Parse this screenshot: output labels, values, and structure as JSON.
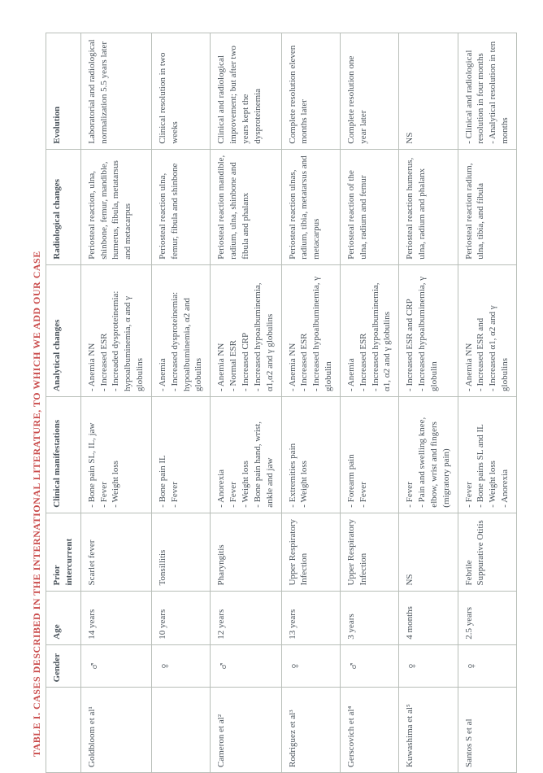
{
  "title": "TABLE I. CASES DESCRIBED IN THE INTERNATIONAL LITERATURE, TO WHICH WE ADD OUR CASE",
  "headers": {
    "c0": "",
    "c1": "Gender",
    "c2": "Age",
    "c3": "Prior intercurrent",
    "c4": "Clinical manifestations",
    "c5": "Analytical changes",
    "c6": "Radiological changes",
    "c7": "Evolution"
  },
  "rows": [
    {
      "ref": "Goldbloom et al¹",
      "gender": "♂",
      "age": "14 years",
      "prior": "Scarlet fever",
      "clinical": "- Bone pain SL, IL, jaw\n- Fever\n- Weight loss",
      "analytical": "- Anemia NN\n- Increased ESR\n- Increaded dysproteinemia: hypoalbuminemia, α and γ globulins",
      "radiological": "Periosteal reaction, ulna, shinbone, femur, mandible, humerus, fibula, metatarsus and metacarpus",
      "evolution": "Laboratorial and radiological normalization 5.5 years later"
    },
    {
      "ref": "",
      "gender": "♀",
      "age": "10 years",
      "prior": "Tonsillitis",
      "clinical": "- Bone pain IL\n- Fever",
      "analytical": "- Anemia\n- Increased dysproteinemia: hypoalbuminemia, α2 and globulins",
      "radiological": "Periosteal reaction ulna, femur, fibula and shinbone",
      "evolution": "Clinical resolution in two weeks"
    },
    {
      "ref": "Cameron et al²",
      "gender": "♂",
      "age": "12 years",
      "prior": "Pharyngitis",
      "clinical": "- Anorexia\n- Fever\n- Weight loss\n- Bone pain hand, wrist, ankle and jaw",
      "analytical": "- Anemia NN\n- Normal ESR\n- Increased CRP\n- Increased hypoalbuminemia, α1,α2 and γ globulins",
      "radiological": "Periosteal reaction mandible, radium, ulna, shinbone and fibula and phalanx",
      "evolution": "Clinical and radiological improvement; but after two years kept the dysproteinemia"
    },
    {
      "ref": "Rodriguez et al³",
      "gender": "♀",
      "age": "13 years",
      "prior": "Upper Respiratory Infection",
      "clinical": "- Extremities pain\n- Weight loss",
      "analytical": "- Anemia NN\n- Increased ESR\n- Increased hypoalbuminemia, γ globulin",
      "radiological": "Periosteal reaction ulnas, radium, tibia, metatarsus and metacarpus",
      "evolution": "Complete resolution eleven months later"
    },
    {
      "ref": "Gerscovich et al⁴",
      "gender": "♂",
      "age": "3 years",
      "prior": "Upper Respiratory Infection",
      "clinical": "- Forearm pain\n- Fever",
      "analytical": "- Anemia\n- Increased ESR\n- Increased hypoalbuminemia, α1, α2 and γ globulins",
      "radiological": "Periosteal reaction of the ulna, radium and femur",
      "evolution": "Complete resolution one year later"
    },
    {
      "ref": "Kuwashima et al⁵",
      "gender": "♀",
      "age": "4 months",
      "prior": "NS",
      "clinical": "- Fever\n- Pain and swelling knee, elbow, wrist and fingers (migratory pain)",
      "analytical": "- Increased ESR and CRP\n- Increased hypoalbuminemia, γ globulin",
      "radiological": "Periosteal reaction humerus, ulna, radium and phalanx",
      "evolution": "NS"
    },
    {
      "ref": "Santos S et al",
      "gender": "♀",
      "age": "2.5 years",
      "prior": "Febrile Suppurative Otitis",
      "clinical": "- Fever\n- Bone pains SL and IL\n- Weight loss\n- Anorexia",
      "analytical": "- Anemia NN\n- Increased ESR and\n- Increased α1, α2 and γ globulins",
      "radiological": "Periosteal reaction radium, ulna, tibia, and fibula",
      "evolution": "- Clinical and radiological resolution in four months\n- Analytical resolution in ten months"
    }
  ],
  "columnWidths": [
    "95",
    "40",
    "55",
    "85",
    "135",
    "155",
    "135",
    "135"
  ]
}
